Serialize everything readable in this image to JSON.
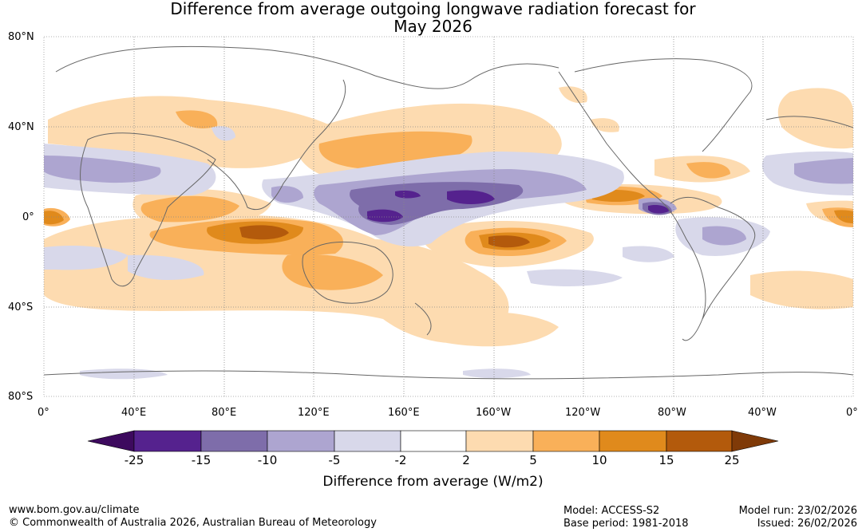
{
  "header": {
    "title_line1": "Difference from average outgoing longwave radiation forecast for",
    "title_line2": "May 2026"
  },
  "map": {
    "lat_labels": [
      "80°N",
      "40°N",
      "0°",
      "40°S",
      "80°S"
    ],
    "lon_labels": [
      "0°",
      "40°E",
      "80°E",
      "120°E",
      "160°E",
      "160°W",
      "120°W",
      "80°W",
      "40°W",
      "0°"
    ]
  },
  "colorbar": {
    "ticks": [
      "-25",
      "-15",
      "-10",
      "-5",
      "-2",
      "2",
      "5",
      "10",
      "15",
      "25"
    ],
    "colors": [
      "#3d0a5e",
      "#55228e",
      "#7e6daa",
      "#ada5d0",
      "#d8d8ea",
      "#ffffff",
      "#fddbb0",
      "#f9b059",
      "#e08a1c",
      "#b35a0c",
      "#7f3a08"
    ],
    "title": "Difference from average (W/m2)"
  },
  "footer": {
    "url": "www.bom.gov.au/climate",
    "copyright": "© Commonwealth of Australia 2026, Australian Bureau of Meteorology",
    "model": "Model: ACCESS-S2",
    "base_period": "Base period: 1981-2018",
    "model_run": "Model run: 23/02/2026",
    "issued": "Issued: 26/02/2026"
  }
}
